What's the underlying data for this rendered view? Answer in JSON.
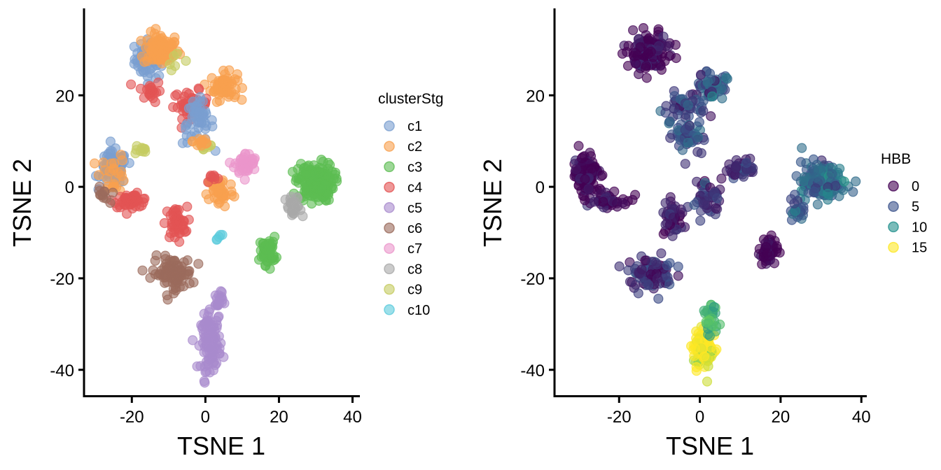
{
  "chart_data": [
    {
      "type": "scatter",
      "panel": "left",
      "xlabel": "TSNE 1",
      "ylabel": "TSNE 2",
      "xlim": [
        -33,
        42
      ],
      "ylim": [
        -46,
        39
      ],
      "x_ticks": [
        -20,
        0,
        20,
        40
      ],
      "y_ticks": [
        -40,
        -20,
        0,
        20
      ],
      "x_tick_labels": [
        "-20",
        "0",
        "20",
        "40"
      ],
      "y_tick_labels": [
        "-40",
        "-20",
        "0",
        "20"
      ],
      "grid": false,
      "legend": {
        "title": "clusterStg",
        "position": "right",
        "entries": [
          {
            "label": "c1",
            "color": "#7a9fd0"
          },
          {
            "label": "c2",
            "color": "#f8a04f"
          },
          {
            "label": "c3",
            "color": "#5cbd52"
          },
          {
            "label": "c4",
            "color": "#e35454"
          },
          {
            "label": "c5",
            "color": "#a98bcd"
          },
          {
            "label": "c6",
            "color": "#9b6b5c"
          },
          {
            "label": "c7",
            "color": "#eb96cb"
          },
          {
            "label": "c8",
            "color": "#a9a9a9"
          },
          {
            "label": "c9",
            "color": "#c5cc62"
          },
          {
            "label": "c10",
            "color": "#5ccbdc"
          }
        ]
      },
      "clusters": [
        {
          "label": "c1",
          "center": [
            -15,
            28
          ],
          "spread": [
            3.5,
            3.5
          ],
          "n": 70
        },
        {
          "label": "c2",
          "center": [
            -12,
            30
          ],
          "spread": [
            4,
            3
          ],
          "n": 90
        },
        {
          "label": "c4",
          "center": [
            -15,
            21
          ],
          "spread": [
            2.5,
            2
          ],
          "n": 20
        },
        {
          "label": "c9",
          "center": [
            -8,
            28
          ],
          "spread": [
            2,
            2
          ],
          "n": 6
        },
        {
          "label": "c2",
          "center": [
            5,
            22
          ],
          "spread": [
            3,
            2.5
          ],
          "n": 60
        },
        {
          "label": "c4",
          "center": [
            -4,
            18
          ],
          "spread": [
            4,
            2.5
          ],
          "n": 45
        },
        {
          "label": "c1",
          "center": [
            -2,
            14
          ],
          "spread": [
            3.5,
            4
          ],
          "n": 50
        },
        {
          "label": "c9",
          "center": [
            0,
            9
          ],
          "spread": [
            2,
            1.2
          ],
          "n": 12
        },
        {
          "label": "c2",
          "center": [
            -1,
            10
          ],
          "spread": [
            2,
            1.5
          ],
          "n": 12
        },
        {
          "label": "c1",
          "center": [
            -25,
            4
          ],
          "spread": [
            3,
            3
          ],
          "n": 95
        },
        {
          "label": "c2",
          "center": [
            -25,
            3
          ],
          "spread": [
            3,
            3.5
          ],
          "n": 25
        },
        {
          "label": "c4",
          "center": [
            -20,
            -3
          ],
          "spread": [
            4,
            1.2
          ],
          "n": 45
        },
        {
          "label": "c6",
          "center": [
            -28,
            -2
          ],
          "spread": [
            1.5,
            1.5
          ],
          "n": 12
        },
        {
          "label": "c9",
          "center": [
            -18,
            8
          ],
          "spread": [
            2,
            1
          ],
          "n": 10
        },
        {
          "label": "c4",
          "center": [
            -8,
            -8
          ],
          "spread": [
            2.5,
            3
          ],
          "n": 45
        },
        {
          "label": "c2",
          "center": [
            4,
            -1
          ],
          "spread": [
            3,
            3
          ],
          "n": 45
        },
        {
          "label": "c4",
          "center": [
            2,
            2
          ],
          "spread": [
            1.5,
            1
          ],
          "n": 8
        },
        {
          "label": "c7",
          "center": [
            11,
            5
          ],
          "spread": [
            2.5,
            2
          ],
          "n": 50
        },
        {
          "label": "c3",
          "center": [
            30,
            1
          ],
          "spread": [
            4,
            3.5
          ],
          "n": 170
        },
        {
          "label": "c8",
          "center": [
            24,
            -5
          ],
          "spread": [
            1.8,
            2.5
          ],
          "n": 25
        },
        {
          "label": "c3",
          "center": [
            17,
            -14
          ],
          "spread": [
            1.8,
            2.5
          ],
          "n": 55
        },
        {
          "label": "c10",
          "center": [
            4,
            -11
          ],
          "spread": [
            1,
            0.5
          ],
          "n": 5
        },
        {
          "label": "c6",
          "center": [
            -9,
            -19
          ],
          "spread": [
            4.5,
            3
          ],
          "n": 90
        },
        {
          "label": "c5",
          "center": [
            1.5,
            -34
          ],
          "spread": [
            2.2,
            5
          ],
          "n": 110
        },
        {
          "label": "c5",
          "center": [
            3.5,
            -25
          ],
          "spread": [
            1,
            2.5
          ],
          "n": 20
        }
      ]
    },
    {
      "type": "scatter",
      "panel": "right",
      "xlabel": "TSNE 1",
      "ylabel": "TSNE 2",
      "xlim": [
        -36,
        41
      ],
      "ylim": [
        -46,
        39
      ],
      "x_ticks": [
        -20,
        0,
        20,
        40
      ],
      "y_ticks": [
        -40,
        -20,
        0,
        20
      ],
      "x_tick_labels": [
        "-20",
        "0",
        "20",
        "40"
      ],
      "y_tick_labels": [
        "-40",
        "-20",
        "0",
        "20"
      ],
      "grid": false,
      "color_scale": "viridis",
      "legend": {
        "title": "HBB",
        "position": "right",
        "entries": [
          {
            "label": "0",
            "value": 0,
            "color": "#440154"
          },
          {
            "label": "5",
            "value": 5,
            "color": "#3b528b"
          },
          {
            "label": "10",
            "value": 10,
            "color": "#21908c"
          },
          {
            "label": "15",
            "value": 15,
            "color": "#fde725"
          }
        ]
      },
      "clusters": [
        {
          "center": [
            -13,
            29
          ],
          "spread": [
            4,
            3.5
          ],
          "n": 160,
          "hbb": 0
        },
        {
          "center": [
            3,
            22
          ],
          "spread": [
            3,
            2.5
          ],
          "n": 60,
          "hbb": 4
        },
        {
          "center": [
            -4,
            17
          ],
          "spread": [
            4,
            2.5
          ],
          "n": 45,
          "hbb": 3
        },
        {
          "center": [
            -3,
            11
          ],
          "spread": [
            3,
            3
          ],
          "n": 55,
          "hbb": 4
        },
        {
          "center": [
            -28,
            3
          ],
          "spread": [
            3,
            3.5
          ],
          "n": 120,
          "hbb": 0
        },
        {
          "center": [
            -22,
            -3
          ],
          "spread": [
            4,
            1.2
          ],
          "n": 45,
          "hbb": 0
        },
        {
          "center": [
            -7,
            -7
          ],
          "spread": [
            2.5,
            3
          ],
          "n": 45,
          "hbb": 1
        },
        {
          "center": [
            2,
            -2
          ],
          "spread": [
            3,
            3
          ],
          "n": 45,
          "hbb": 2
        },
        {
          "center": [
            10,
            4
          ],
          "spread": [
            2.5,
            2
          ],
          "n": 45,
          "hbb": 2
        },
        {
          "center": [
            30,
            1
          ],
          "spread": [
            4,
            3.5
          ],
          "n": 170,
          "hbb": 5
        },
        {
          "center": [
            24,
            -5
          ],
          "spread": [
            1.8,
            2.5
          ],
          "n": 25,
          "hbb": 4
        },
        {
          "center": [
            17,
            -14
          ],
          "spread": [
            1.8,
            2.5
          ],
          "n": 55,
          "hbb": 0
        },
        {
          "center": [
            -12,
            -19
          ],
          "spread": [
            4.5,
            3
          ],
          "n": 90,
          "hbb": 2
        },
        {
          "center": [
            1,
            -36
          ],
          "spread": [
            2.2,
            3.5
          ],
          "n": 100,
          "hbb": 15
        },
        {
          "center": [
            3,
            -28
          ],
          "spread": [
            1.2,
            3
          ],
          "n": 30,
          "hbb": 10
        }
      ]
    }
  ]
}
